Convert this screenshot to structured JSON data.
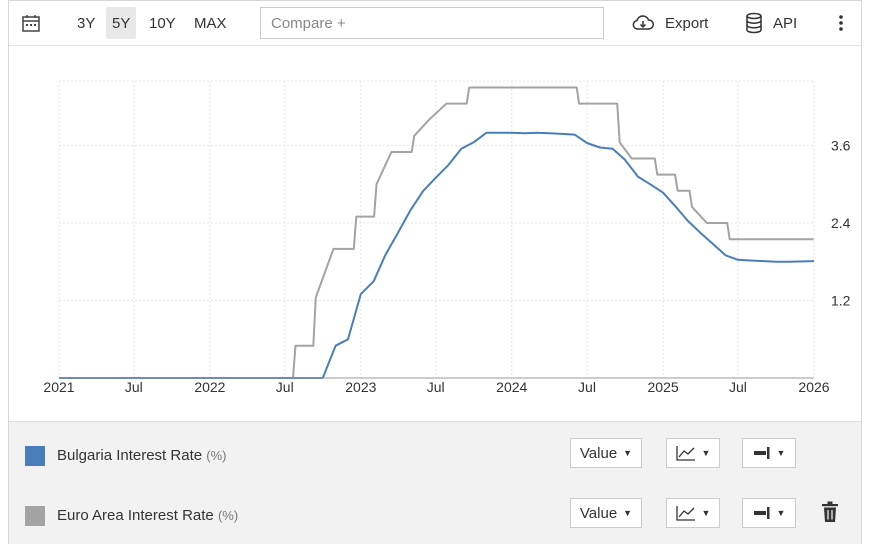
{
  "toolbar": {
    "ranges": [
      "3Y",
      "5Y",
      "10Y",
      "MAX"
    ],
    "active_range": "5Y",
    "compare_placeholder": "Compare +",
    "export_label": "Export",
    "api_label": "API"
  },
  "legend": [
    {
      "name": "Bulgaria Interest Rate",
      "unit": "(%)",
      "color": "#4a7ebb",
      "value_label": "Value",
      "deletable": false
    },
    {
      "name": "Euro Area Interest Rate",
      "unit": "(%)",
      "color": "#a3a3a3",
      "value_label": "Value",
      "deletable": true
    }
  ],
  "chart_data": {
    "type": "line",
    "xlim": [
      "2021-01-01",
      "2026-01-01"
    ],
    "ylim": [
      0,
      4.6
    ],
    "x_ticks": [
      {
        "date": "2021-01-01",
        "label": "2021"
      },
      {
        "date": "2021-07-01",
        "label": "Jul"
      },
      {
        "date": "2022-01-01",
        "label": "2022"
      },
      {
        "date": "2022-07-01",
        "label": "Jul"
      },
      {
        "date": "2023-01-01",
        "label": "2023"
      },
      {
        "date": "2023-07-01",
        "label": "Jul"
      },
      {
        "date": "2024-01-01",
        "label": "2024"
      },
      {
        "date": "2024-07-01",
        "label": "Jul"
      },
      {
        "date": "2025-01-01",
        "label": "2025"
      },
      {
        "date": "2025-07-01",
        "label": "Jul"
      },
      {
        "date": "2026-01-01",
        "label": "2026"
      }
    ],
    "y_ticks": [
      {
        "value": 1.2,
        "label": "1.2"
      },
      {
        "value": 2.4,
        "label": "2.4"
      },
      {
        "value": 3.6,
        "label": "3.6"
      }
    ],
    "series": [
      {
        "name": "Bulgaria Interest Rate",
        "color": "#4a7ebb",
        "points": [
          [
            "2021-01-01",
            0
          ],
          [
            "2022-10-01",
            0
          ],
          [
            "2022-11-01",
            0.5
          ],
          [
            "2022-12-01",
            0.6
          ],
          [
            "2023-01-01",
            1.3
          ],
          [
            "2023-02-01",
            1.5
          ],
          [
            "2023-03-01",
            1.9
          ],
          [
            "2023-04-01",
            2.25
          ],
          [
            "2023-05-01",
            2.6
          ],
          [
            "2023-06-01",
            2.9
          ],
          [
            "2023-07-01",
            3.1
          ],
          [
            "2023-08-01",
            3.3
          ],
          [
            "2023-09-01",
            3.55
          ],
          [
            "2023-10-01",
            3.65
          ],
          [
            "2023-11-01",
            3.8
          ],
          [
            "2023-12-01",
            3.8
          ],
          [
            "2024-01-01",
            3.8
          ],
          [
            "2024-02-01",
            3.79
          ],
          [
            "2024-03-01",
            3.8
          ],
          [
            "2024-04-01",
            3.79
          ],
          [
            "2024-05-01",
            3.78
          ],
          [
            "2024-06-01",
            3.77
          ],
          [
            "2024-07-01",
            3.64
          ],
          [
            "2024-08-01",
            3.57
          ],
          [
            "2024-09-01",
            3.55
          ],
          [
            "2024-10-01",
            3.38
          ],
          [
            "2024-11-01",
            3.12
          ],
          [
            "2024-12-01",
            3.0
          ],
          [
            "2025-01-01",
            2.87
          ],
          [
            "2025-02-01",
            2.65
          ],
          [
            "2025-03-01",
            2.44
          ],
          [
            "2025-04-01",
            2.25
          ],
          [
            "2025-05-01",
            2.08
          ],
          [
            "2025-06-01",
            1.9
          ],
          [
            "2025-07-01",
            1.83
          ],
          [
            "2025-08-01",
            1.82
          ],
          [
            "2025-09-01",
            1.81
          ],
          [
            "2025-10-01",
            1.8
          ],
          [
            "2025-11-01",
            1.8
          ],
          [
            "2026-01-01",
            1.81
          ]
        ]
      },
      {
        "name": "Euro Area Interest Rate",
        "color": "#a3a3a3",
        "points": [
          [
            "2021-01-01",
            0
          ],
          [
            "2022-07-21",
            0
          ],
          [
            "2022-07-27",
            0.5
          ],
          [
            "2022-09-08",
            0.5
          ],
          [
            "2022-09-14",
            1.25
          ],
          [
            "2022-10-27",
            2.0
          ],
          [
            "2022-12-15",
            2.0
          ],
          [
            "2022-12-21",
            2.5
          ],
          [
            "2023-02-02",
            2.5
          ],
          [
            "2023-02-08",
            3.0
          ],
          [
            "2023-03-16",
            3.5
          ],
          [
            "2023-05-04",
            3.5
          ],
          [
            "2023-05-10",
            3.75
          ],
          [
            "2023-06-15",
            4.0
          ],
          [
            "2023-07-27",
            4.25
          ],
          [
            "2023-09-14",
            4.25
          ],
          [
            "2023-09-20",
            4.5
          ],
          [
            "2024-06-06",
            4.5
          ],
          [
            "2024-06-12",
            4.25
          ],
          [
            "2024-09-12",
            4.25
          ],
          [
            "2024-09-18",
            3.65
          ],
          [
            "2024-10-17",
            3.4
          ],
          [
            "2024-12-12",
            3.4
          ],
          [
            "2024-12-18",
            3.15
          ],
          [
            "2025-01-30",
            3.15
          ],
          [
            "2025-02-05",
            2.9
          ],
          [
            "2025-03-06",
            2.9
          ],
          [
            "2025-03-12",
            2.65
          ],
          [
            "2025-04-17",
            2.4
          ],
          [
            "2025-06-05",
            2.4
          ],
          [
            "2025-06-11",
            2.15
          ],
          [
            "2025-12-31",
            2.15
          ]
        ]
      }
    ]
  }
}
